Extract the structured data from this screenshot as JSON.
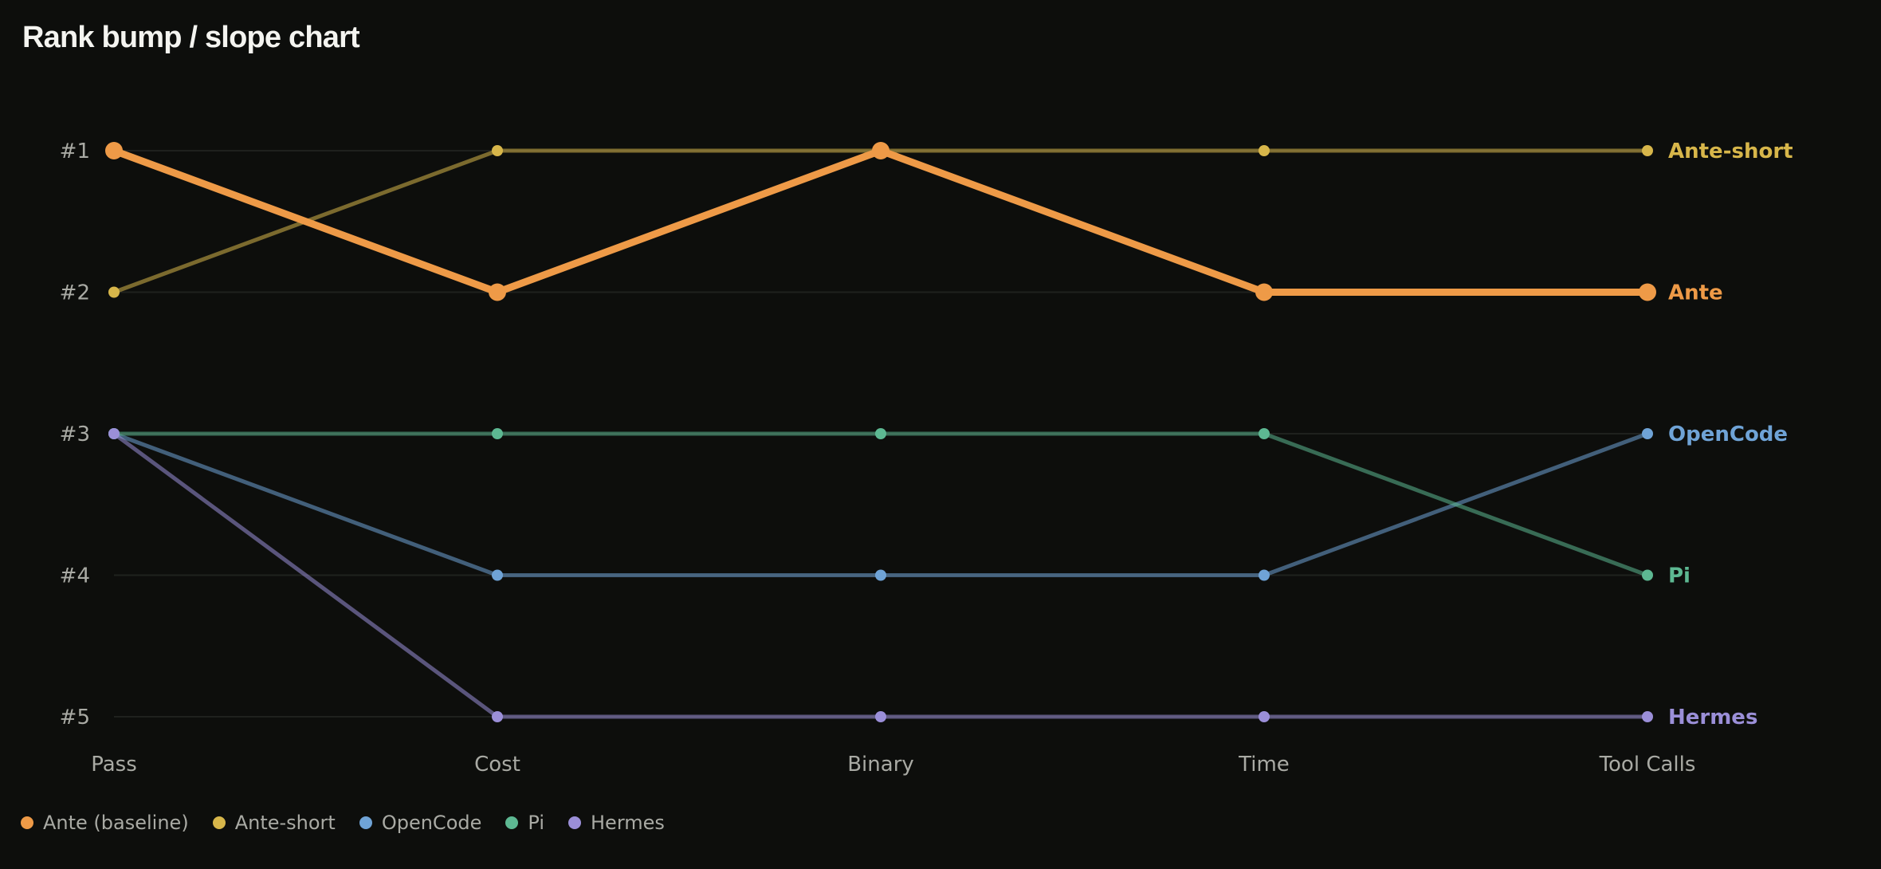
{
  "title": "Rank bump / slope chart",
  "chart_data": {
    "type": "line",
    "title": "Rank bump / slope chart",
    "categories": [
      "Pass",
      "Cost",
      "Binary",
      "Time",
      "Tool Calls"
    ],
    "y_tick_labels": [
      "#1",
      "#2",
      "#3",
      "#4",
      "#5"
    ],
    "ylim": [
      1,
      5
    ],
    "y_inverted": true,
    "grid": true,
    "legend_position": "bottom-left",
    "series": [
      {
        "name": "Ante",
        "legend": "Ante (baseline)",
        "values": [
          1,
          2,
          1,
          2,
          2
        ],
        "color": "#ee9a47",
        "highlight": true
      },
      {
        "name": "Ante-short",
        "legend": "Ante-short",
        "values": [
          2,
          1,
          1,
          1,
          1
        ],
        "color": "#d7b64a",
        "highlight": false
      },
      {
        "name": "OpenCode",
        "legend": "OpenCode",
        "values": [
          3,
          4,
          4,
          4,
          3
        ],
        "color": "#6fa3d6",
        "highlight": false
      },
      {
        "name": "Pi",
        "legend": "Pi",
        "values": [
          3,
          3,
          3,
          3,
          4
        ],
        "color": "#5db892",
        "highlight": false
      },
      {
        "name": "Hermes",
        "legend": "Hermes",
        "values": [
          3,
          5,
          5,
          5,
          5
        ],
        "color": "#9b8fd8",
        "highlight": false
      }
    ]
  }
}
